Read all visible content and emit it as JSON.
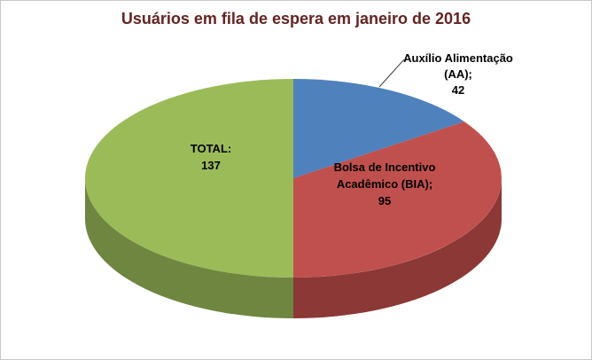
{
  "frame": {
    "background": "#ffffff",
    "border_color": "#c9c9c9"
  },
  "chart_data": {
    "type": "pie",
    "title": "Usuários em fila de espera em janeiro de 2016",
    "title_color": "#632423",
    "style": "3d-pie",
    "legend": "none",
    "start_angle_deg": 0,
    "direction": "clockwise",
    "slices": [
      {
        "label": "Auxílio Alimentação (AA)",
        "value": 42,
        "color": "#4F81BD",
        "side_color": "#365A85"
      },
      {
        "label": "Bolsa de Incentivo Acadêmico (BIA)",
        "value": 95,
        "color": "#C0504D",
        "side_color": "#8C3836"
      },
      {
        "label": "TOTAL",
        "value": 137,
        "color": "#9BBB59",
        "side_color": "#6F8640"
      }
    ],
    "labels": {
      "total": {
        "lines": [
          "TOTAL:",
          "137"
        ]
      },
      "bia": {
        "lines": [
          "Bolsa de Incentivo",
          "Acadêmico (BIA);",
          "95"
        ]
      },
      "aa": {
        "lines": [
          "Auxílio Alimentação",
          "(AA);",
          "42"
        ]
      }
    },
    "label_color": "#000000",
    "leader_line_color": "#404040"
  }
}
